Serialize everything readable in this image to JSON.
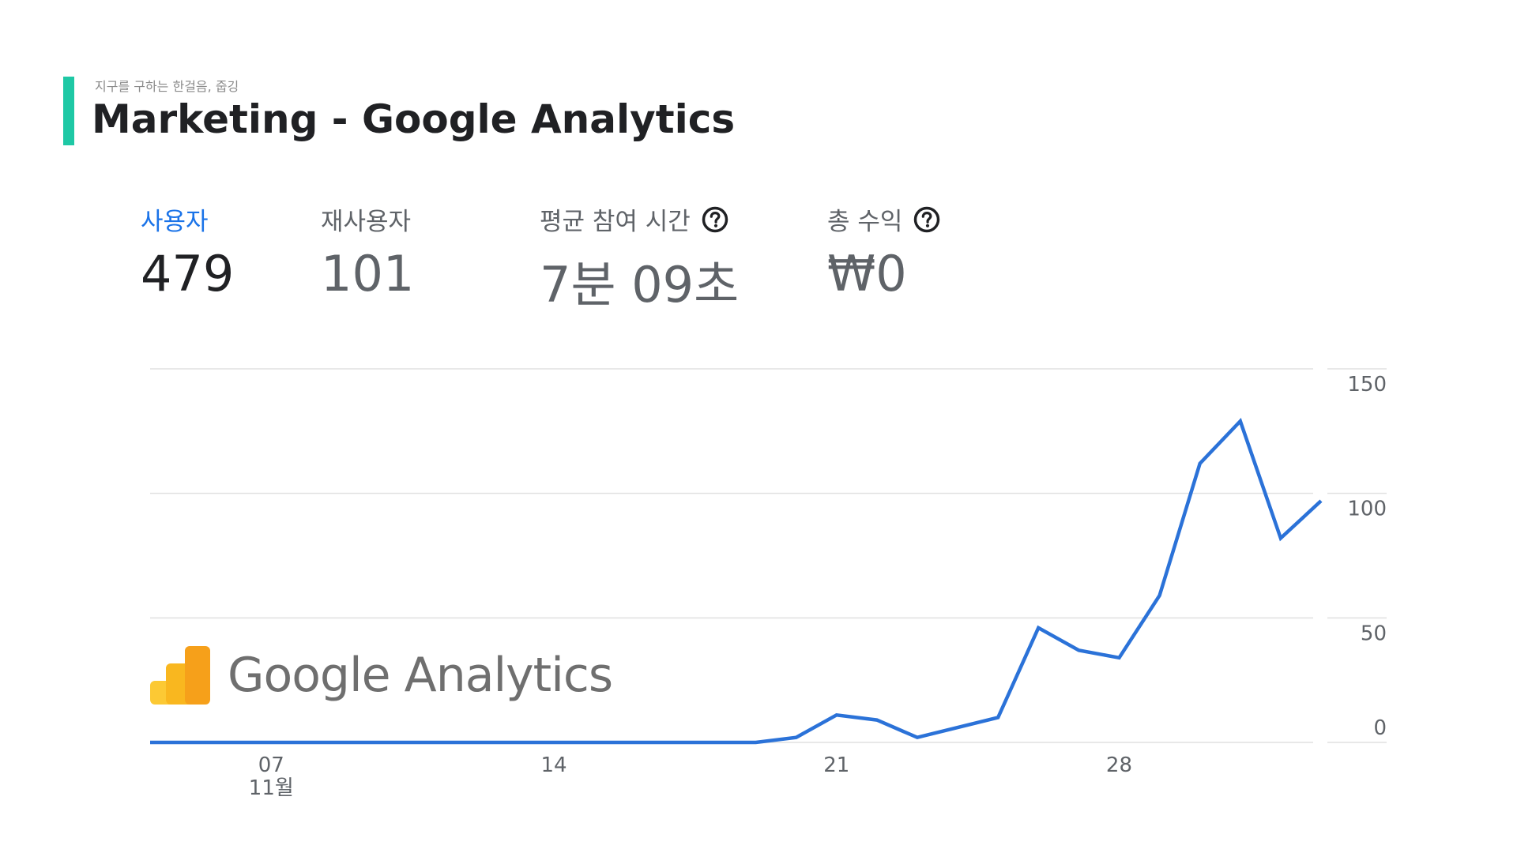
{
  "header": {
    "subtitle": "지구를 구하는 한걸음, 줍깅",
    "title": "Marketing - Google Analytics"
  },
  "metrics": [
    {
      "label": "사용자",
      "value": "479",
      "active": true,
      "help": false
    },
    {
      "label": "재사용자",
      "value": "101",
      "active": false,
      "help": false
    },
    {
      "label": "평균 참여 시간",
      "value": "7분 09초",
      "active": false,
      "help": true
    },
    {
      "label": "총 수익",
      "value": "₩0",
      "active": false,
      "help": true
    }
  ],
  "logo": {
    "text": "Google Analytics"
  },
  "colors": {
    "accent": "#1ec8a5",
    "line": "#2b72d8",
    "active_label": "#1a73e8",
    "logo_orange": "#f6a01a",
    "logo_yellow": "#fcc934"
  },
  "chart_data": {
    "type": "line",
    "x": [
      1,
      2,
      3,
      4,
      5,
      6,
      7,
      8,
      9,
      10,
      11,
      12,
      13,
      14,
      15,
      16,
      17,
      18,
      19,
      20,
      21,
      22,
      23,
      24,
      25,
      26,
      27,
      28,
      29,
      30
    ],
    "series": [
      {
        "values": [
          0,
          0,
          0,
          0,
          0,
          0,
          0,
          0,
          0,
          0,
          0,
          0,
          0,
          0,
          0,
          0,
          2,
          11,
          9,
          2,
          6,
          10,
          46,
          37,
          34,
          59,
          112,
          129,
          82,
          97
        ]
      }
    ],
    "ylim": [
      0,
      150
    ],
    "yticks": [
      0,
      50,
      100,
      150
    ],
    "ytick_labels": [
      "0",
      "50",
      "100",
      "150"
    ],
    "xticks": [
      {
        "x": 4,
        "label": "07",
        "sublabel": "11월"
      },
      {
        "x": 11,
        "label": "14",
        "sublabel": ""
      },
      {
        "x": 18,
        "label": "21",
        "sublabel": ""
      },
      {
        "x": 25,
        "label": "28",
        "sublabel": ""
      }
    ],
    "grid": true
  }
}
